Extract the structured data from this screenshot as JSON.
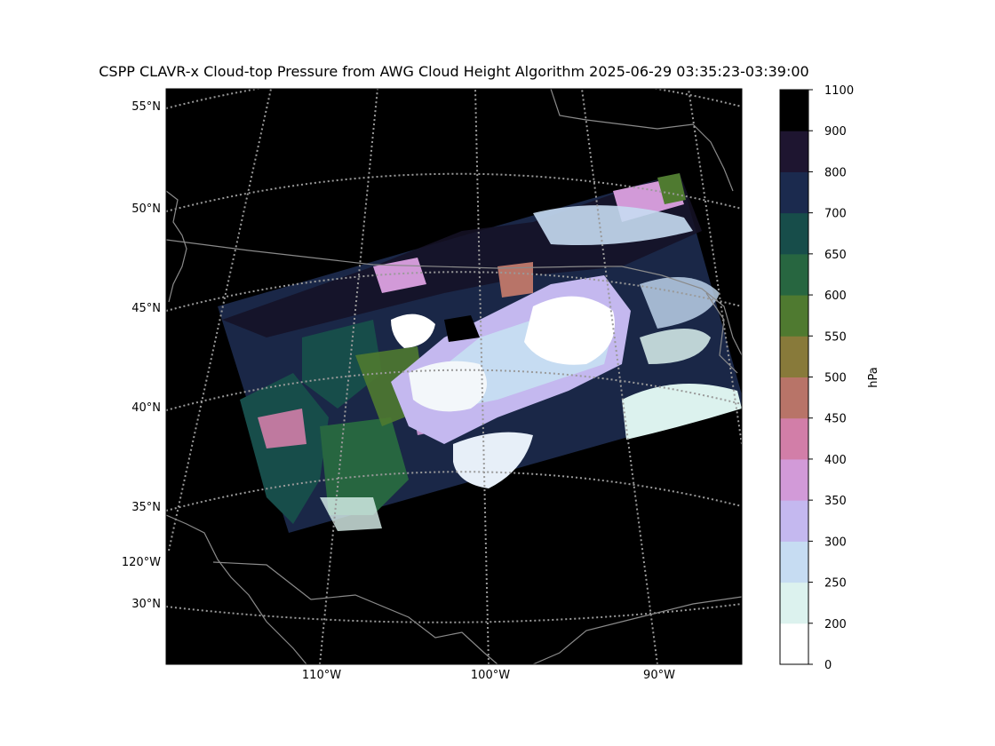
{
  "title": "CSPP CLAVR-x Cloud-top Pressure from AWG Cloud Height Algorithm 2025-06-29 03:35:23-03:39:00",
  "map": {
    "background": "#000000",
    "gridline_color": "#9a9a9a",
    "border_color": "#8a8a8a",
    "lat_labels": [
      "55°N",
      "50°N",
      "45°N",
      "40°N",
      "35°N",
      "30°N"
    ],
    "lon_labels_bottom": [
      "110°W",
      "100°W",
      "90°W"
    ],
    "lon_label_left": "120°W"
  },
  "colorbar": {
    "label": "hPa",
    "ticks": [
      "0",
      "200",
      "250",
      "300",
      "350",
      "400",
      "450",
      "500",
      "550",
      "600",
      "650",
      "700",
      "800",
      "900",
      "1100"
    ],
    "colors": [
      "#ffffff",
      "#dcf2ee",
      "#c6dcf2",
      "#c4b8ef",
      "#d29ad8",
      "#d27ea8",
      "#b87468",
      "#887a3a",
      "#4f7a30",
      "#276640",
      "#174d4a",
      "#1b2a4e",
      "#1e1530",
      "#000000"
    ]
  }
}
